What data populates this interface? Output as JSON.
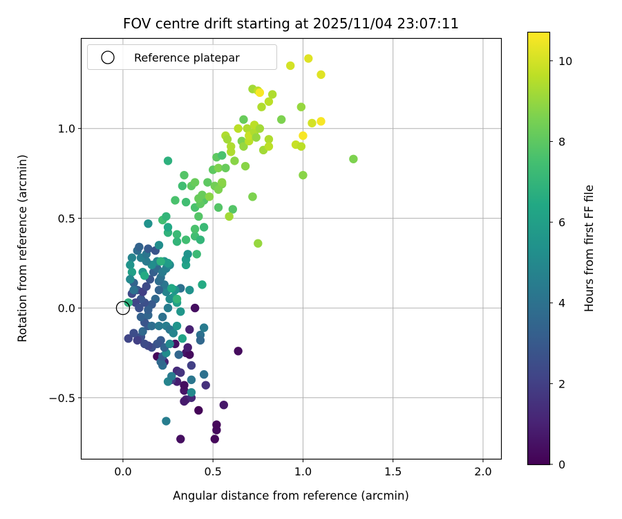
{
  "chart_data": {
    "type": "scatter",
    "title": "FOV centre drift starting at 2025/11/04 23:07:11",
    "xlabel": "Angular distance from reference (arcmin)",
    "ylabel": "Rotation from reference (arcmin)",
    "xlim": [
      -0.23,
      2.1
    ],
    "ylim": [
      -0.84,
      1.5
    ],
    "xticks": [
      0.0,
      0.5,
      1.0,
      1.5,
      2.0
    ],
    "xtick_labels": [
      "0.0",
      "0.5",
      "1.0",
      "1.5",
      "2.0"
    ],
    "yticks": [
      -0.5,
      0.0,
      0.5,
      1.0
    ],
    "ytick_labels": [
      "−0.5",
      "0.0",
      "0.5",
      "1.0"
    ],
    "grid": true,
    "colormap": "viridis",
    "colorbar": {
      "label": "Hours from first FF file",
      "min": 0,
      "max": 10.7,
      "ticks": [
        0,
        2,
        4,
        6,
        8,
        10
      ],
      "tick_labels": [
        "0",
        "2",
        "4",
        "6",
        "8",
        "10"
      ]
    },
    "legend": {
      "location": "upper-left",
      "label": "Reference platepar"
    },
    "reference": {
      "x": 0.0,
      "y": 0.0
    },
    "points": [
      [
        0.32,
        -0.73,
        0.4
      ],
      [
        0.51,
        -0.73,
        0.2
      ],
      [
        0.52,
        -0.68,
        0.3
      ],
      [
        0.52,
        -0.65,
        0.2
      ],
      [
        0.42,
        -0.57,
        0.1
      ],
      [
        0.35,
        -0.51,
        1.0
      ],
      [
        0.38,
        -0.5,
        1.2
      ],
      [
        0.34,
        -0.52,
        0.8
      ],
      [
        0.34,
        -0.46,
        0.6
      ],
      [
        0.34,
        -0.43,
        0.4
      ],
      [
        0.56,
        -0.54,
        0.7
      ],
      [
        0.46,
        -0.43,
        1.5
      ],
      [
        0.3,
        -0.41,
        0.9
      ],
      [
        0.27,
        -0.4,
        1.8
      ],
      [
        0.3,
        -0.35,
        1.3
      ],
      [
        0.32,
        -0.36,
        1.6
      ],
      [
        0.38,
        -0.32,
        2.0
      ],
      [
        0.35,
        -0.25,
        0.6
      ],
      [
        0.37,
        -0.26,
        0.3
      ],
      [
        0.29,
        -0.2,
        0.5
      ],
      [
        0.23,
        -0.3,
        1.0
      ],
      [
        0.19,
        -0.27,
        0.2
      ],
      [
        0.64,
        -0.24,
        0.3
      ],
      [
        0.24,
        -0.63,
        4.5
      ],
      [
        0.25,
        -0.41,
        4.8
      ],
      [
        0.38,
        -0.47,
        5.0
      ],
      [
        0.38,
        -0.4,
        4.2
      ],
      [
        0.45,
        -0.37,
        4.0
      ],
      [
        0.27,
        -0.38,
        4.4
      ],
      [
        0.22,
        -0.32,
        3.8
      ],
      [
        0.21,
        -0.3,
        3.6
      ],
      [
        0.22,
        -0.27,
        3.2
      ],
      [
        0.24,
        -0.25,
        5.2
      ],
      [
        0.23,
        -0.22,
        3.4
      ],
      [
        0.21,
        -0.18,
        3.0
      ],
      [
        0.19,
        -0.2,
        2.8
      ],
      [
        0.16,
        -0.22,
        2.6
      ],
      [
        0.14,
        -0.21,
        2.2
      ],
      [
        0.12,
        -0.2,
        2.4
      ],
      [
        0.1,
        -0.16,
        2.6
      ],
      [
        0.08,
        -0.18,
        2.0
      ],
      [
        0.03,
        -0.17,
        2.2
      ],
      [
        0.06,
        -0.14,
        2.5
      ],
      [
        0.11,
        -0.13,
        3.6
      ],
      [
        0.14,
        -0.1,
        3.0
      ],
      [
        0.12,
        -0.08,
        2.8
      ],
      [
        0.1,
        -0.05,
        3.3
      ],
      [
        0.14,
        -0.04,
        3.5
      ],
      [
        0.16,
        -0.1,
        3.8
      ],
      [
        0.2,
        -0.1,
        4.3
      ],
      [
        0.22,
        -0.05,
        4.0
      ],
      [
        0.24,
        -0.1,
        4.5
      ],
      [
        0.26,
        -0.12,
        4.2
      ],
      [
        0.28,
        -0.14,
        4.8
      ],
      [
        0.26,
        -0.2,
        5.0
      ],
      [
        0.3,
        -0.1,
        5.5
      ],
      [
        0.33,
        -0.17,
        6.2
      ],
      [
        0.36,
        -0.22,
        0.9
      ],
      [
        0.37,
        -0.12,
        1.0
      ],
      [
        0.31,
        -0.26,
        3.5
      ],
      [
        0.43,
        -0.15,
        4.0
      ],
      [
        0.43,
        -0.18,
        3.6
      ],
      [
        0.45,
        -0.11,
        4.4
      ],
      [
        0.4,
        0.0,
        0.4
      ],
      [
        0.32,
        0.11,
        4.0
      ],
      [
        0.32,
        -0.02,
        5.6
      ],
      [
        0.3,
        0.03,
        6.0
      ],
      [
        0.28,
        0.06,
        5.8
      ],
      [
        0.29,
        0.1,
        5.5
      ],
      [
        0.25,
        0.0,
        4.5
      ],
      [
        0.26,
        0.05,
        5.2
      ],
      [
        0.24,
        0.09,
        4.8
      ],
      [
        0.23,
        0.13,
        4.2
      ],
      [
        0.2,
        0.15,
        3.8
      ],
      [
        0.2,
        0.1,
        3.4
      ],
      [
        0.18,
        0.05,
        3.6
      ],
      [
        0.16,
        0.02,
        3.0
      ],
      [
        0.14,
        -0.01,
        3.2
      ],
      [
        0.12,
        0.03,
        2.6
      ],
      [
        0.1,
        0.05,
        2.8
      ],
      [
        0.08,
        0.1,
        3.0
      ],
      [
        0.06,
        0.14,
        3.4
      ],
      [
        0.05,
        0.08,
        2.4
      ],
      [
        0.07,
        0.03,
        2.2
      ],
      [
        0.09,
        0.0,
        2.6
      ],
      [
        0.11,
        0.09,
        2.0
      ],
      [
        0.13,
        0.12,
        2.4
      ],
      [
        0.15,
        0.16,
        2.8
      ],
      [
        0.17,
        0.2,
        3.2
      ],
      [
        0.19,
        0.22,
        3.6
      ],
      [
        0.21,
        0.17,
        4.0
      ],
      [
        0.22,
        0.2,
        4.4
      ],
      [
        0.24,
        0.22,
        4.6
      ],
      [
        0.26,
        0.24,
        5.0
      ],
      [
        0.23,
        0.26,
        5.4
      ],
      [
        0.19,
        0.26,
        4.8
      ],
      [
        0.16,
        0.24,
        5.2
      ],
      [
        0.13,
        0.26,
        4.4
      ],
      [
        0.11,
        0.2,
        5.6
      ],
      [
        0.1,
        0.28,
        4.6
      ],
      [
        0.08,
        0.32,
        3.8
      ],
      [
        0.09,
        0.34,
        3.4
      ],
      [
        0.13,
        0.3,
        4.2
      ],
      [
        0.14,
        0.33,
        3.0
      ],
      [
        0.18,
        0.32,
        2.8
      ],
      [
        0.05,
        0.28,
        4.8
      ],
      [
        0.04,
        0.24,
        5.5
      ],
      [
        0.05,
        0.2,
        6.0
      ],
      [
        0.04,
        0.16,
        5.0
      ],
      [
        0.06,
        0.1,
        4.0
      ],
      [
        0.03,
        0.03,
        6.8
      ],
      [
        0.12,
        0.18,
        6.5
      ],
      [
        0.14,
        0.47,
        5.4
      ],
      [
        0.25,
        0.25,
        5.8
      ],
      [
        0.35,
        0.24,
        6.2
      ],
      [
        0.35,
        0.27,
        5.8
      ],
      [
        0.36,
        0.3,
        5.5
      ],
      [
        0.37,
        0.1,
        5.4
      ],
      [
        0.41,
        0.3,
        7.2
      ],
      [
        0.44,
        0.13,
        6.5
      ],
      [
        0.3,
        0.05,
        7.0
      ],
      [
        0.27,
        0.11,
        6.4
      ],
      [
        0.21,
        0.26,
        6.8
      ],
      [
        0.2,
        0.35,
        5.2
      ],
      [
        0.25,
        0.42,
        6.9
      ],
      [
        0.25,
        0.45,
        6.4
      ],
      [
        0.3,
        0.41,
        7.2
      ],
      [
        0.3,
        0.37,
        7.0
      ],
      [
        0.35,
        0.38,
        7.4
      ],
      [
        0.4,
        0.4,
        7.4
      ],
      [
        0.43,
        0.38,
        7.0
      ],
      [
        0.45,
        0.45,
        7.2
      ],
      [
        0.4,
        0.44,
        7.6
      ],
      [
        0.42,
        0.51,
        7.8
      ],
      [
        0.22,
        0.49,
        7.4
      ],
      [
        0.24,
        0.51,
        7.0
      ],
      [
        0.29,
        0.6,
        7.6
      ],
      [
        0.35,
        0.59,
        7.4
      ],
      [
        0.4,
        0.56,
        7.6
      ],
      [
        0.45,
        0.6,
        7.8
      ],
      [
        0.43,
        0.58,
        8.0
      ],
      [
        0.42,
        0.61,
        8.2
      ],
      [
        0.44,
        0.63,
        8.2
      ],
      [
        0.48,
        0.62,
        8.8
      ],
      [
        0.38,
        0.68,
        8.0
      ],
      [
        0.4,
        0.7,
        8.2
      ],
      [
        0.34,
        0.74,
        7.8
      ],
      [
        0.33,
        0.68,
        7.4
      ],
      [
        0.25,
        0.82,
        6.8
      ],
      [
        0.47,
        0.7,
        8.0
      ],
      [
        0.51,
        0.68,
        8.4
      ],
      [
        0.53,
        0.66,
        8.6
      ],
      [
        0.55,
        0.69,
        8.6
      ],
      [
        0.55,
        0.7,
        8.8
      ],
      [
        0.5,
        0.77,
        8.0
      ],
      [
        0.53,
        0.78,
        8.6
      ],
      [
        0.57,
        0.78,
        8.2
      ],
      [
        0.52,
        0.84,
        8.0
      ],
      [
        0.55,
        0.85,
        7.6
      ],
      [
        0.53,
        0.56,
        7.8
      ],
      [
        0.61,
        0.55,
        7.8
      ],
      [
        0.59,
        0.51,
        9.2
      ],
      [
        0.62,
        0.82,
        8.8
      ],
      [
        0.6,
        0.87,
        9.4
      ],
      [
        0.6,
        0.9,
        9.4
      ],
      [
        0.57,
        0.96,
        9.4
      ],
      [
        0.58,
        0.94,
        9.2
      ],
      [
        0.64,
        1.0,
        9.6
      ],
      [
        0.66,
        0.93,
        8.6
      ],
      [
        0.67,
        0.9,
        9.0
      ],
      [
        0.67,
        1.05,
        8.2
      ],
      [
        0.68,
        0.79,
        8.8
      ],
      [
        0.69,
        1.0,
        9.4
      ],
      [
        0.7,
        0.93,
        9.6
      ],
      [
        0.7,
        0.96,
        9.8
      ],
      [
        0.72,
        0.62,
        8.4
      ],
      [
        0.72,
        0.62,
        8.6
      ],
      [
        0.73,
        0.98,
        9.4
      ],
      [
        0.73,
        1.02,
        9.6
      ],
      [
        0.74,
        0.95,
        9.0
      ],
      [
        0.76,
        1.0,
        9.2
      ],
      [
        0.72,
        1.22,
        9.2
      ],
      [
        0.75,
        1.21,
        9.6
      ],
      [
        0.76,
        1.2,
        10.6
      ],
      [
        0.77,
        1.12,
        9.4
      ],
      [
        0.81,
        1.15,
        9.6
      ],
      [
        0.83,
        1.19,
        9.4
      ],
      [
        0.78,
        0.88,
        9.2
      ],
      [
        0.81,
        0.94,
        9.4
      ],
      [
        0.81,
        0.9,
        9.6
      ],
      [
        0.75,
        0.36,
        9.0
      ],
      [
        0.88,
        1.05,
        8.6
      ],
      [
        0.93,
        1.35,
        10.0
      ],
      [
        0.96,
        0.91,
        9.8
      ],
      [
        0.99,
        0.9,
        9.6
      ],
      [
        0.99,
        1.12,
        9.0
      ],
      [
        1.0,
        0.74,
        8.8
      ],
      [
        1.0,
        0.96,
        10.6
      ],
      [
        1.03,
        1.39,
        10.2
      ],
      [
        1.05,
        1.03,
        10.0
      ],
      [
        1.1,
        1.04,
        10.6
      ],
      [
        1.1,
        1.3,
        10.2
      ],
      [
        1.28,
        0.83,
        8.6
      ]
    ]
  }
}
